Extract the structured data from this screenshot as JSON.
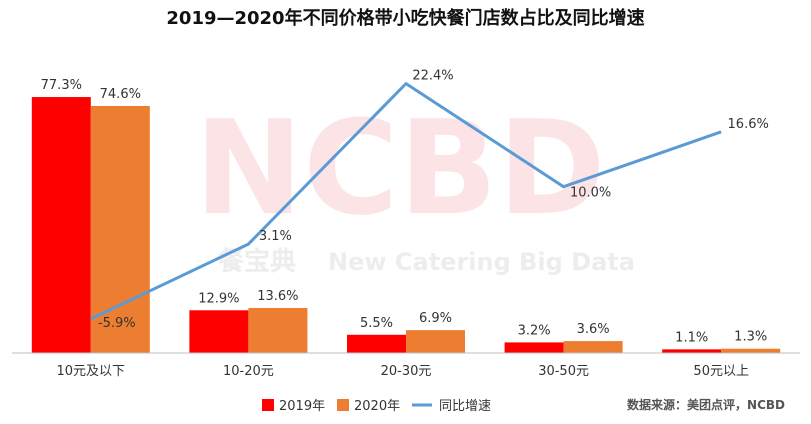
{
  "chart_data": {
    "type": "bar",
    "title": "2019—2020年不同价格带小吃快餐门店数占比及同比增速",
    "categories": [
      "10元及以下",
      "10-20元",
      "20-30元",
      "30-50元",
      "50元以上"
    ],
    "series": [
      {
        "name": "2019年",
        "type": "bar",
        "color": "#FF0000",
        "values": [
          77.3,
          12.9,
          5.5,
          3.2,
          1.1
        ],
        "labels": [
          "77.3%",
          "12.9%",
          "5.5%",
          "3.2%",
          "1.1%"
        ]
      },
      {
        "name": "2020年",
        "type": "bar",
        "color": "#ED7D31",
        "values": [
          74.6,
          13.6,
          6.9,
          3.6,
          1.3
        ],
        "labels": [
          "74.6%",
          "13.6%",
          "6.9%",
          "3.6%",
          "1.3%"
        ]
      },
      {
        "name": "同比增速",
        "type": "line",
        "color": "#5B9BD5",
        "values": [
          -5.9,
          3.1,
          22.4,
          10.0,
          16.6
        ],
        "labels": [
          "-5.9%",
          "3.1%",
          "22.4%",
          "10.0%",
          "16.6%"
        ]
      }
    ],
    "bar_ylim": [
      0,
      90
    ],
    "line_ylim": [
      -10,
      25
    ],
    "legend_position": "bottom-center",
    "grid": false
  },
  "watermark": {
    "big": "NCBD",
    "cn": "餐宝典",
    "en": "New Catering Big Data"
  },
  "source_text": "数据来源：美团点评，NCBD"
}
